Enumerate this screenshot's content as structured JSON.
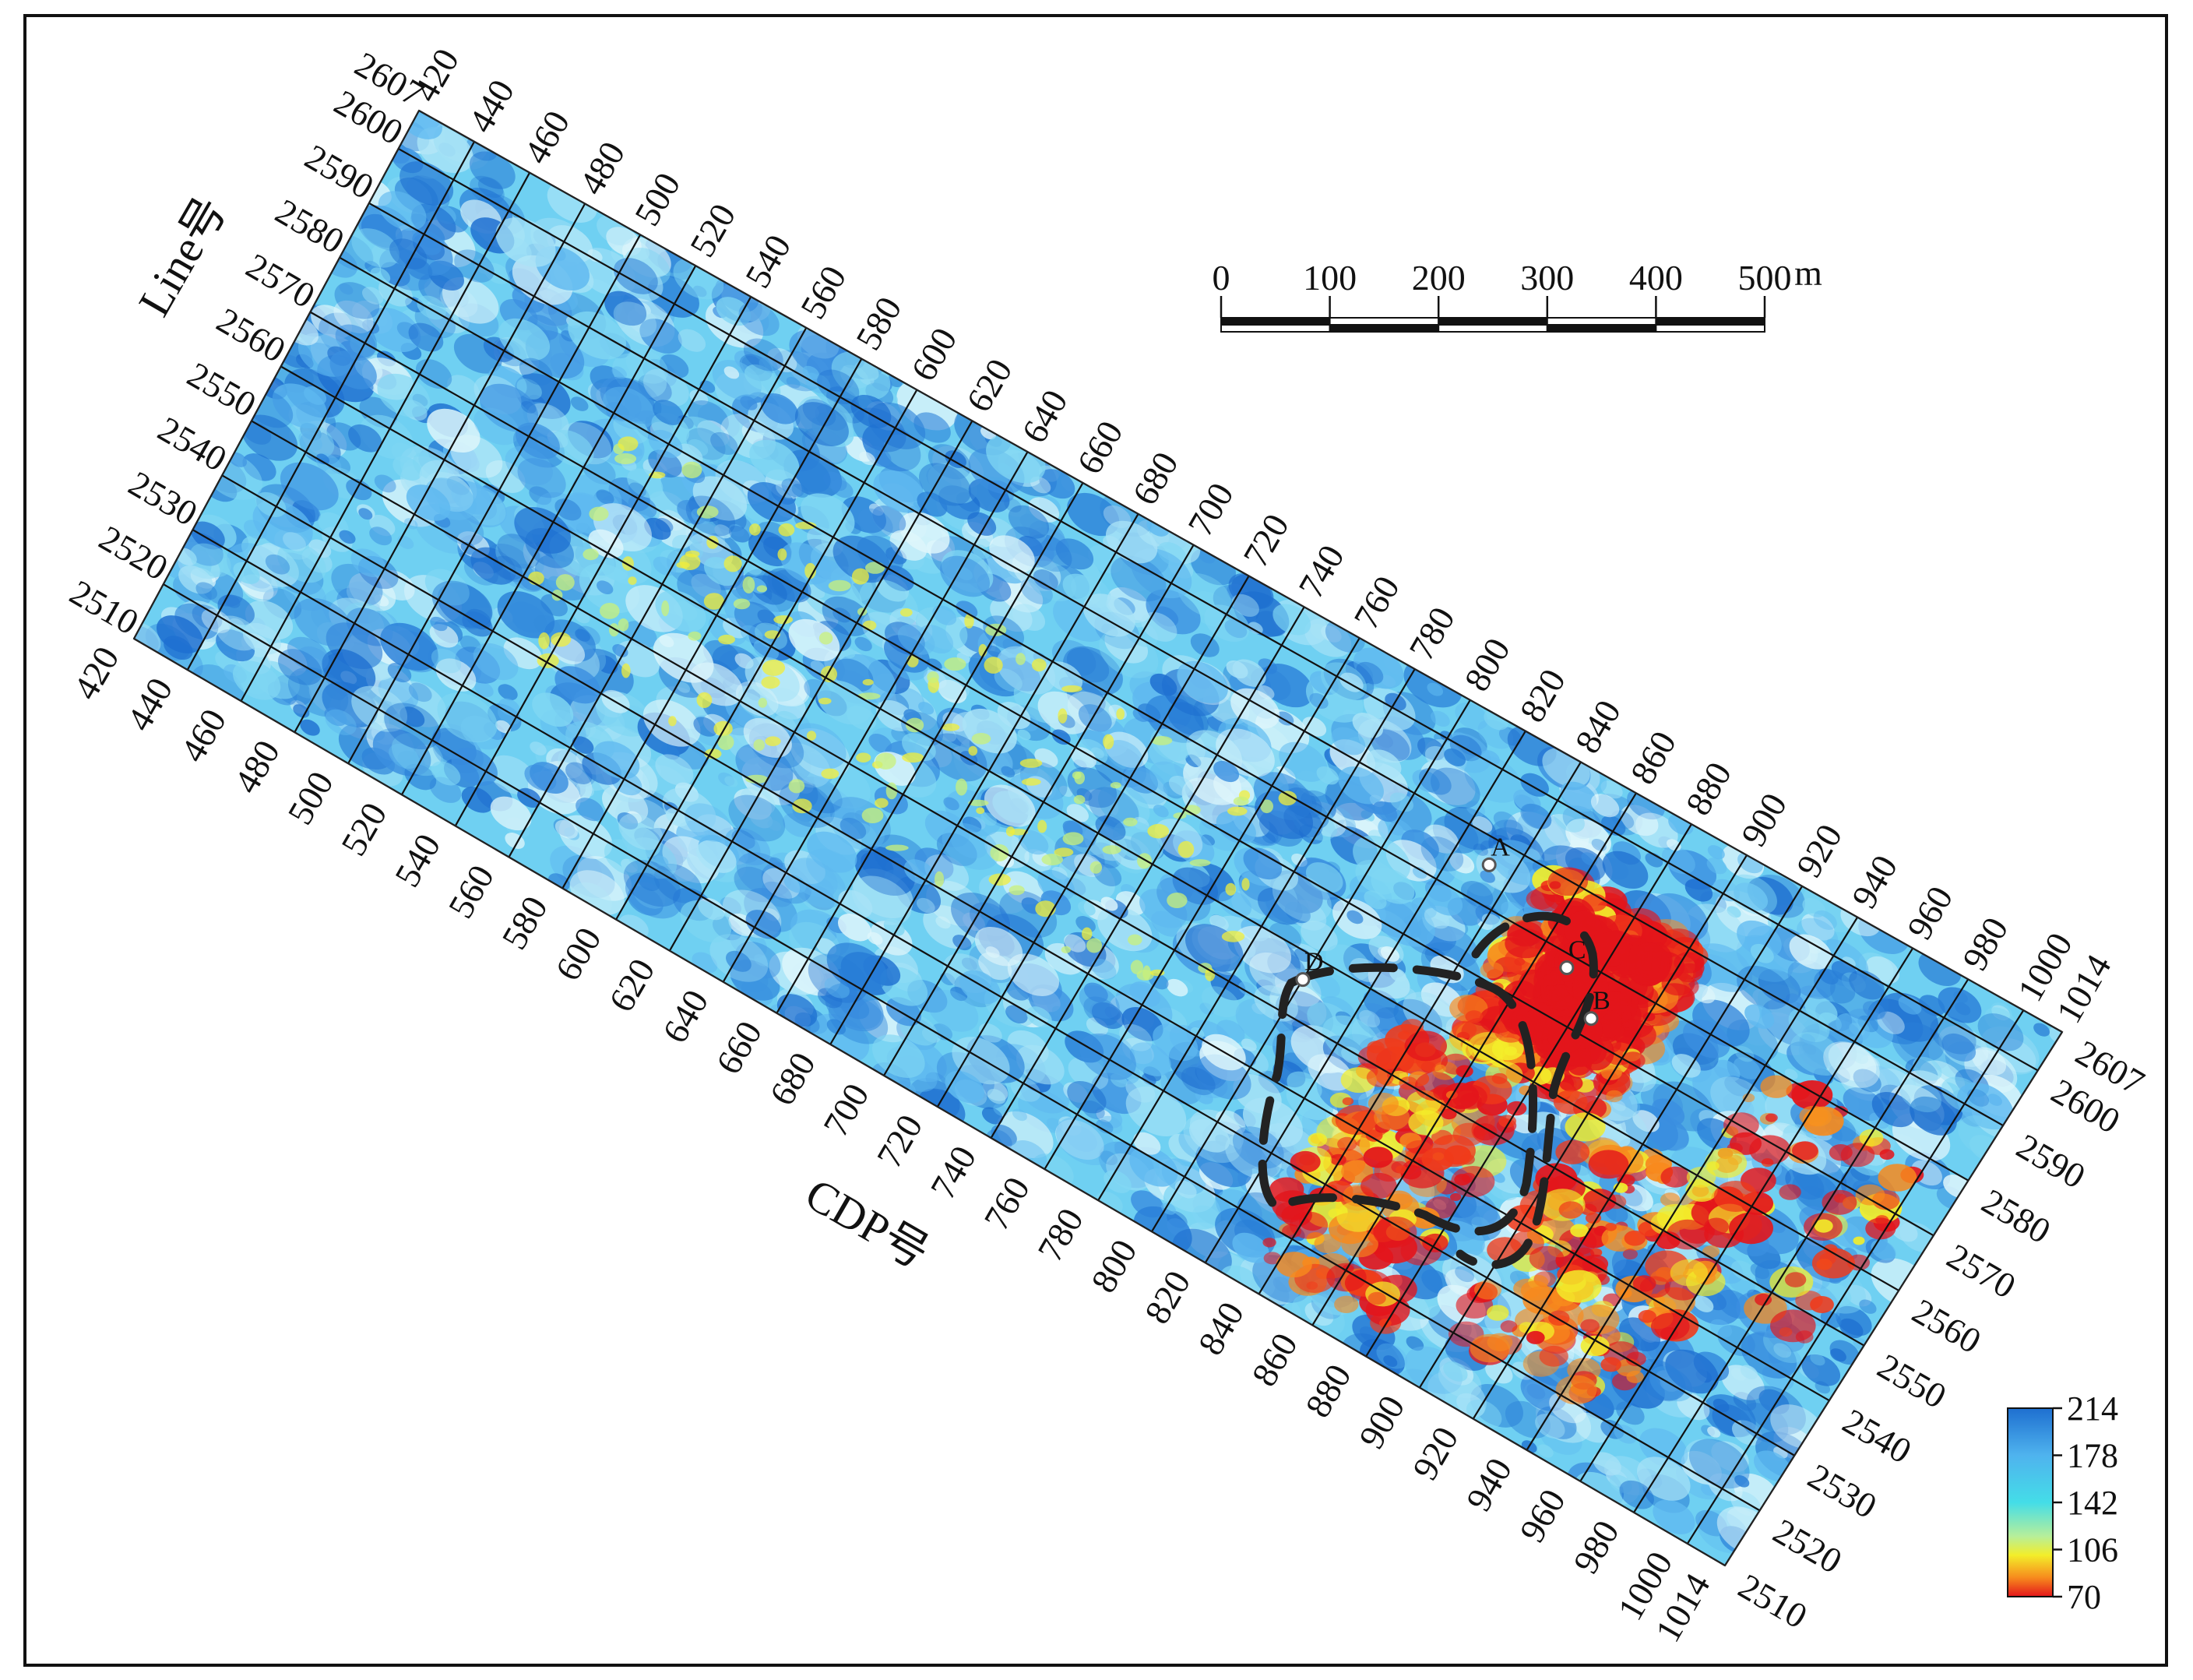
{
  "map": {
    "axes": {
      "cdp": {
        "label": "CDP号",
        "min": 420,
        "max": 1014,
        "ticks": [
          420,
          440,
          460,
          480,
          500,
          520,
          540,
          560,
          580,
          600,
          620,
          640,
          660,
          680,
          700,
          720,
          740,
          760,
          780,
          800,
          820,
          840,
          860,
          880,
          900,
          920,
          940,
          960,
          980,
          1000,
          1014
        ]
      },
      "line": {
        "label": "Line号",
        "min": 2510,
        "max": 2607,
        "ticks": [
          2510,
          2520,
          2530,
          2540,
          2550,
          2560,
          2570,
          2580,
          2590,
          2600,
          2607
        ]
      }
    },
    "scale_bar": {
      "ticks": [
        "0",
        "100",
        "200",
        "300",
        "400",
        "500"
      ],
      "unit": "m"
    },
    "colorbar": {
      "ticks": [
        "214",
        "178",
        "142",
        "106",
        "70"
      ],
      "colors": [
        "#1e6fd0",
        "#4fb3ee",
        "#44dde8",
        "#b7ef9a",
        "#f3ee2a",
        "#f78a1d",
        "#e3151b"
      ]
    },
    "points": [
      {
        "label": "A",
        "cdp": 832,
        "line": 2586
      },
      {
        "label": "B",
        "cdp": 885,
        "line": 2573
      },
      {
        "label": "C",
        "cdp": 870,
        "line": 2578
      },
      {
        "label": "D",
        "cdp": 800,
        "line": 2556
      }
    ],
    "anomaly_zone": {
      "description_visible": false,
      "style": "dashed-outline"
    }
  }
}
